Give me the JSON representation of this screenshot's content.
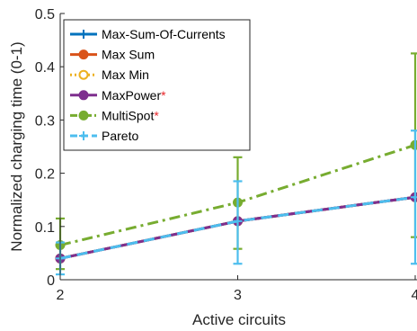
{
  "chart_data": {
    "type": "line",
    "title": "",
    "xlabel": "Active circuits",
    "ylabel": "Normalized charging time (0-1)",
    "x": [
      2,
      3,
      4
    ],
    "x_ticks": [
      "2",
      "3",
      "4"
    ],
    "xlim": [
      2,
      4
    ],
    "y_ticks": [
      "0",
      "0.1",
      "0.2",
      "0.3",
      "0.4",
      "0.5"
    ],
    "ylim": [
      0,
      0.5
    ],
    "grid": false,
    "legend_position": "top-left",
    "series": [
      {
        "name": "Max-Sum-Of-Currents",
        "star": "",
        "color": "#0072bd",
        "values": [
          0.04,
          0.11,
          0.155
        ],
        "err_low": [
          0.04,
          0.11,
          0.155
        ],
        "err_high": [
          0.04,
          0.11,
          0.155
        ],
        "marker": "plus",
        "dash": "solid"
      },
      {
        "name": "Max Sum",
        "star": "",
        "color": "#d95319",
        "values": [
          0.04,
          0.11,
          0.155
        ],
        "err_low": [
          0.04,
          0.11,
          0.155
        ],
        "err_high": [
          0.04,
          0.11,
          0.155
        ],
        "marker": "circle",
        "dash": "solid"
      },
      {
        "name": "Max Min",
        "star": "",
        "color": "#edb120",
        "values": [
          0.04,
          0.11,
          0.155
        ],
        "err_low": [
          0.04,
          0.11,
          0.155
        ],
        "err_high": [
          0.04,
          0.11,
          0.155
        ],
        "marker": "circle-open",
        "dash": "dotted"
      },
      {
        "name": "MaxPower",
        "star": "*",
        "color": "#7e2f8e",
        "values": [
          0.04,
          0.11,
          0.155
        ],
        "err_low": [
          0.04,
          0.11,
          0.155
        ],
        "err_high": [
          0.04,
          0.11,
          0.155
        ],
        "marker": "circle",
        "dash": "solid"
      },
      {
        "name": "MultiSpot",
        "star": "*",
        "color": "#77ac30",
        "values": [
          0.065,
          0.145,
          0.253
        ],
        "err_low": [
          0.02,
          0.058,
          0.08
        ],
        "err_high": [
          0.115,
          0.23,
          0.425
        ],
        "marker": "circle",
        "dash": "dashdot"
      },
      {
        "name": "Pareto",
        "star": "",
        "color": "#4dbeee",
        "values": [
          0.04,
          0.11,
          0.155
        ],
        "err_low": [
          0.01,
          0.03,
          0.03
        ],
        "err_high": [
          0.07,
          0.185,
          0.28
        ],
        "marker": "plus",
        "dash": "dashed"
      }
    ]
  }
}
